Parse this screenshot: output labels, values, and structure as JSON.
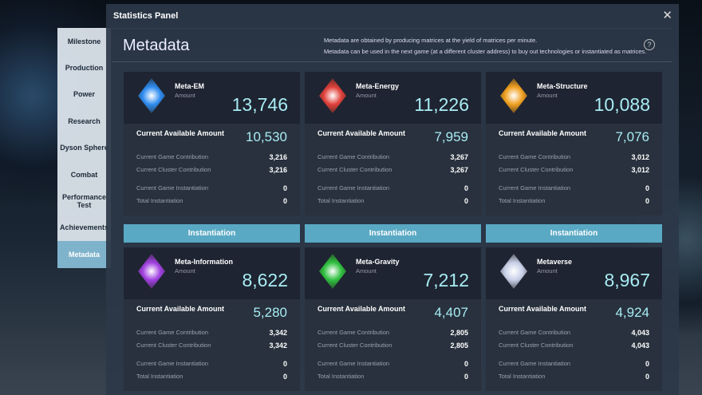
{
  "title": "Statistics Panel",
  "sidebar": [
    "Milestone",
    "Production",
    "Power",
    "Research",
    "Dyson Sphere",
    "Combat",
    "Performance Test",
    "Achievements",
    "Metadata"
  ],
  "active": "Metadata",
  "header": {
    "title": "Metadata",
    "desc1": "Metadata are obtained by producing matrices at the yield of matrices per minute.",
    "desc2": "Metadata can be used in the next game (at a different cluster address) to buy out technologies or instantiated as matrices.",
    "help": "?"
  },
  "labels": {
    "amount": "Amount",
    "available": "Current Available Amount",
    "game_contrib": "Current Game Contribution",
    "cluster_contrib": "Current Cluster Contribution",
    "game_inst": "Current Game Instantiation",
    "total_inst": "Total Instantiation",
    "button": "Instantiation"
  },
  "cards": [
    {
      "name": "Meta-EM",
      "color": "#2f8cf0",
      "amount": "13,746",
      "available": "10,530",
      "game_contrib": "3,216",
      "cluster_contrib": "3,216",
      "game_inst": "0",
      "total_inst": "0"
    },
    {
      "name": "Meta-Energy",
      "color": "#e0403a",
      "amount": "11,226",
      "available": "7,959",
      "game_contrib": "3,267",
      "cluster_contrib": "3,267",
      "game_inst": "0",
      "total_inst": "0"
    },
    {
      "name": "Meta-Structure",
      "color": "#f0a020",
      "amount": "10,088",
      "available": "7,076",
      "game_contrib": "3,012",
      "cluster_contrib": "3,012",
      "game_inst": "0",
      "total_inst": "0"
    },
    {
      "name": "Meta-Information",
      "color": "#a040e0",
      "amount": "8,622",
      "available": "5,280",
      "game_contrib": "3,342",
      "cluster_contrib": "3,342",
      "game_inst": "0",
      "total_inst": "0"
    },
    {
      "name": "Meta-Gravity",
      "color": "#30c040",
      "amount": "7,212",
      "available": "4,407",
      "game_contrib": "2,805",
      "cluster_contrib": "2,805",
      "game_inst": "0",
      "total_inst": "0"
    },
    {
      "name": "Metaverse",
      "color": "#c8d0e8",
      "amount": "8,967",
      "available": "4,924",
      "game_contrib": "4,043",
      "cluster_contrib": "4,043",
      "game_inst": "0",
      "total_inst": "0"
    }
  ]
}
